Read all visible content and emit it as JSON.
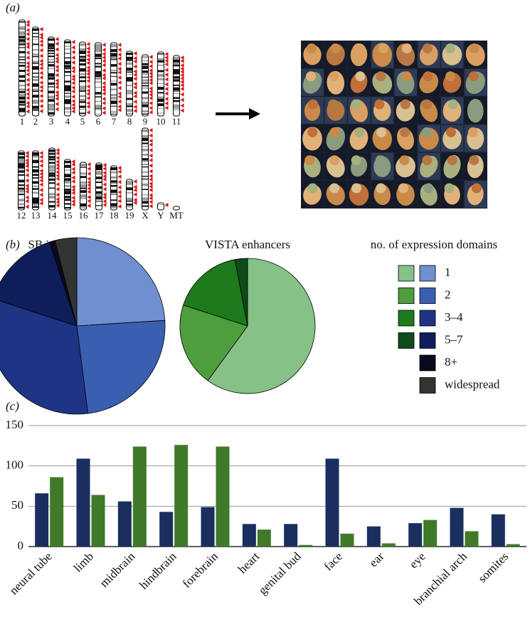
{
  "panel_labels": [
    "(a)",
    "(b)",
    "(c)"
  ],
  "chromosomes": [
    "1",
    "2",
    "3",
    "4",
    "5",
    "6",
    "7",
    "8",
    "9",
    "10",
    "11",
    "12",
    "13",
    "14",
    "15",
    "16",
    "17",
    "18",
    "19",
    "X",
    "Y",
    "MT"
  ],
  "chart_data": [
    {
      "type": "pie",
      "title": "SB insertions",
      "legend_title": "no. of expression domains",
      "categories": [
        "1",
        "2",
        "3–4",
        "5–7",
        "8+",
        "widespread"
      ],
      "values": [
        24,
        24,
        32,
        15,
        1,
        4
      ],
      "colors": [
        "#6f8fcf",
        "#3a5fb0",
        "#1e3586",
        "#0e1e5a",
        "#0a0a1e",
        "#333333"
      ]
    },
    {
      "type": "pie",
      "title": "VISTA enhancers",
      "categories": [
        "1",
        "2",
        "3–4",
        "5–7"
      ],
      "values": [
        60,
        20,
        17,
        3
      ],
      "colors": [
        "#86c187",
        "#4e9e3e",
        "#1d7a1d",
        "#0e4a1a"
      ]
    },
    {
      "type": "bar",
      "categories": [
        "neural tube",
        "limb",
        "midbrain",
        "hindbrain",
        "forebrain",
        "heart",
        "genital bud",
        "face",
        "ear",
        "eye",
        "branchial arch",
        "somites"
      ],
      "series": [
        {
          "color": "#1a2f5e",
          "values": [
            66,
            109,
            56,
            43,
            49,
            28,
            28,
            109,
            25,
            29,
            48,
            40
          ]
        },
        {
          "color": "#3f7a2a",
          "values": [
            86,
            64,
            124,
            126,
            124,
            21,
            2,
            16,
            4,
            33,
            19,
            3
          ]
        }
      ],
      "ylim": [
        0,
        150
      ],
      "yticks": [
        0,
        50,
        100,
        150
      ],
      "grid": true
    }
  ]
}
